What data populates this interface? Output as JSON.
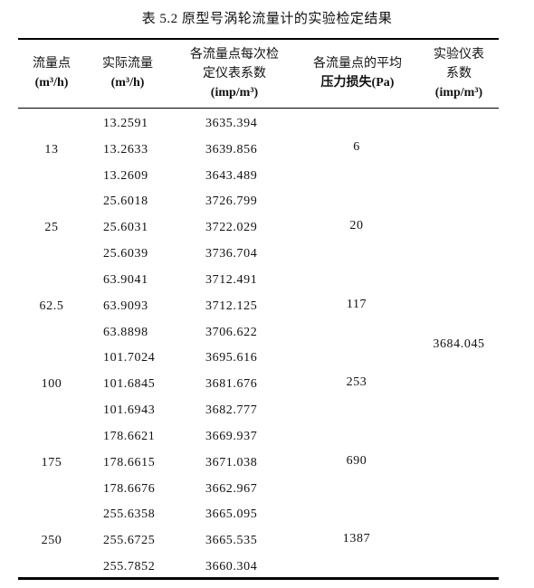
{
  "caption": "表 5.2  原型号涡轮流量计的实验检定结果",
  "headers": {
    "col1": {
      "line1": "流量点",
      "unit": "(m³/h)"
    },
    "col2": {
      "line1": "实际流量",
      "unit": "(m³/h)"
    },
    "col3": {
      "line1": "各流量点每次检",
      "line2": "定仪表系数",
      "unit": "(imp/m³)"
    },
    "col4": {
      "line1": "各流量点的平均",
      "line2": "压力损失(Pa)"
    },
    "col5": {
      "line1": "实验仪表",
      "line2": "系数",
      "unit": "(imp/m³)"
    }
  },
  "groups": [
    {
      "point": "13",
      "loss": "6",
      "flows": [
        "13.2591",
        "13.2633",
        "13.2609"
      ],
      "coeffs": [
        "3635.394",
        "3639.856",
        "3643.489"
      ]
    },
    {
      "point": "25",
      "loss": "20",
      "flows": [
        "25.6018",
        "25.6031",
        "25.6039"
      ],
      "coeffs": [
        "3726.799",
        "3722.029",
        "3736.704"
      ]
    },
    {
      "point": "62.5",
      "loss": "117",
      "flows": [
        "63.9041",
        "63.9093",
        "63.8898"
      ],
      "coeffs": [
        "3712.491",
        "3712.125",
        "3706.622"
      ]
    },
    {
      "point": "100",
      "loss": "253",
      "flows": [
        "101.7024",
        "101.6845",
        "101.6943"
      ],
      "coeffs": [
        "3695.616",
        "3681.676",
        "3682.777"
      ]
    },
    {
      "point": "175",
      "loss": "690",
      "flows": [
        "178.6621",
        "178.6615",
        "178.6676"
      ],
      "coeffs": [
        "3669.937",
        "3671.038",
        "3662.967"
      ]
    },
    {
      "point": "250",
      "loss": "1387",
      "flows": [
        "255.6358",
        "255.6725",
        "255.7852"
      ],
      "coeffs": [
        "3665.095",
        "3665.535",
        "3660.304"
      ]
    }
  ],
  "overall_coefficient": "3684.045"
}
